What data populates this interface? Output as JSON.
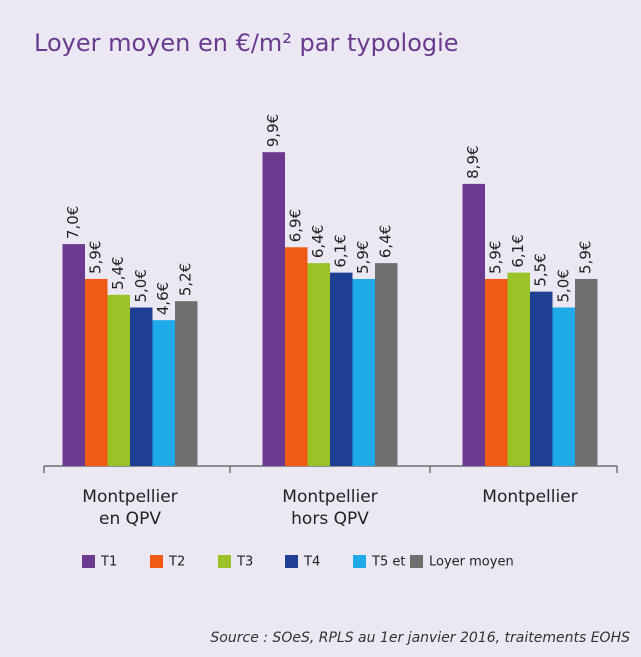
{
  "chart_data": {
    "type": "bar",
    "title": "Loyer moyen en €/m² par typologie",
    "categories": [
      "Montpellier en QPV",
      "Montpellier hors QPV",
      "Montpellier"
    ],
    "series": [
      {
        "name": "T1",
        "color": "#6a3a8f",
        "values": [
          7.0,
          9.9,
          8.9
        ],
        "value_labels": [
          "7,0€",
          "9,9€",
          "8,9€"
        ]
      },
      {
        "name": "T2",
        "color": "#f05a12",
        "values": [
          5.9,
          6.9,
          5.9
        ],
        "value_labels": [
          "5,9€",
          "6,9€",
          "5,9€"
        ]
      },
      {
        "name": "T3",
        "color": "#9cc22a",
        "values": [
          5.4,
          6.4,
          6.1
        ],
        "value_labels": [
          "5,4€",
          "6,4€",
          "6,1€"
        ]
      },
      {
        "name": "T4",
        "color": "#1e3f94",
        "values": [
          5.0,
          6.1,
          5.5
        ],
        "value_labels": [
          "5,0€",
          "6,1€",
          "5,5€"
        ]
      },
      {
        "name": "T5 et +",
        "color": "#1ea9e8",
        "values": [
          4.6,
          5.9,
          5.0
        ],
        "value_labels": [
          "4,6€",
          "5,9€",
          "5,0€"
        ]
      },
      {
        "name": "Loyer moyen",
        "color": "#6f6f6f",
        "values": [
          5.2,
          6.4,
          5.9
        ],
        "value_labels": [
          "5,2€",
          "6,4€",
          "5,9€"
        ]
      }
    ],
    "ylim": [
      0,
      10
    ],
    "source": "Source : SOeS, RPLS au 1er janvier 2016, traitements EOHS"
  }
}
